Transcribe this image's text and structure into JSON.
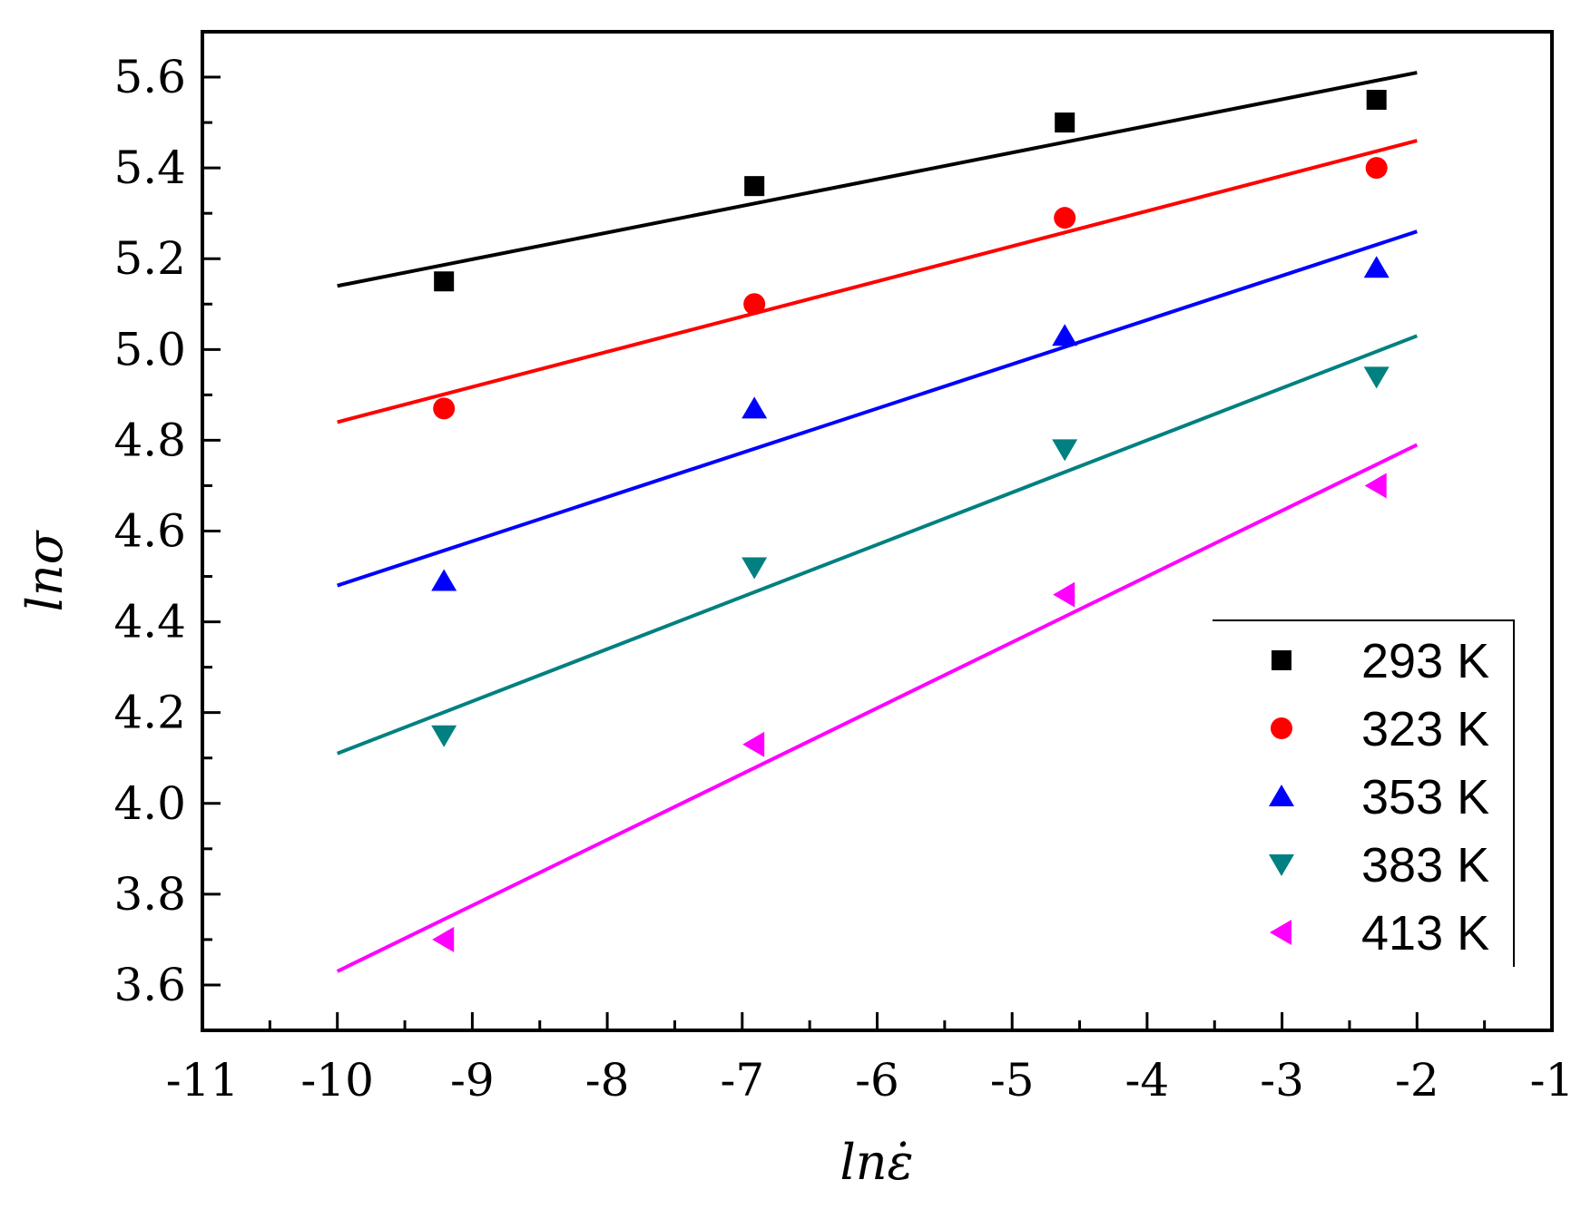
{
  "chart_data": {
    "type": "scatter",
    "title": "",
    "xlabel": "lnε̇",
    "ylabel": "lnσ",
    "xlim": [
      -11,
      -1
    ],
    "ylim": [
      3.5,
      5.7
    ],
    "x_ticks": [
      -11,
      -10,
      -9,
      -8,
      -7,
      -6,
      -5,
      -4,
      -3,
      -2,
      -1
    ],
    "x_tick_labels": [
      "-11",
      "-10",
      "-9",
      "-8",
      "-7",
      "-6",
      "-5",
      "-4",
      "-3",
      "-2",
      "-1"
    ],
    "y_ticks": [
      3.6,
      3.8,
      4.0,
      4.2,
      4.4,
      4.6,
      4.8,
      5.0,
      5.2,
      5.4,
      5.6
    ],
    "y_tick_labels": [
      "3.6",
      "3.8",
      "4.0",
      "4.2",
      "4.4",
      "4.6",
      "4.8",
      "5.0",
      "5.2",
      "5.4",
      "5.6"
    ],
    "legend_position": "bottom-right",
    "series": [
      {
        "name": "293 K",
        "marker": "square",
        "color": "#000000",
        "x": [
          -9.21,
          -6.91,
          -4.61,
          -2.3
        ],
        "y": [
          5.15,
          5.36,
          5.5,
          5.55
        ],
        "fit": {
          "x": [
            -10,
            -2
          ],
          "y": [
            5.14,
            5.61
          ]
        }
      },
      {
        "name": "323 K",
        "marker": "circle",
        "color": "#ff0000",
        "x": [
          -9.21,
          -6.91,
          -4.61,
          -2.3
        ],
        "y": [
          4.87,
          5.1,
          5.29,
          5.4
        ],
        "fit": {
          "x": [
            -10,
            -2
          ],
          "y": [
            4.84,
            5.46
          ]
        }
      },
      {
        "name": "353 K",
        "marker": "triangle-up",
        "color": "#0000ff",
        "x": [
          -9.21,
          -6.91,
          -4.61,
          -2.3
        ],
        "y": [
          4.49,
          4.87,
          5.03,
          5.18
        ],
        "fit": {
          "x": [
            -10,
            -2
          ],
          "y": [
            4.48,
            5.26
          ]
        }
      },
      {
        "name": "383 K",
        "marker": "triangle-down",
        "color": "#008080",
        "x": [
          -9.21,
          -6.91,
          -4.61,
          -2.3
        ],
        "y": [
          4.15,
          4.52,
          4.78,
          4.94
        ],
        "fit": {
          "x": [
            -10,
            -2
          ],
          "y": [
            4.11,
            5.03
          ]
        }
      },
      {
        "name": "413 K",
        "marker": "triangle-left",
        "color": "#ff00ff",
        "x": [
          -9.21,
          -6.91,
          -4.61,
          -2.3
        ],
        "y": [
          3.7,
          4.13,
          4.46,
          4.7
        ],
        "fit": {
          "x": [
            -10,
            -2
          ],
          "y": [
            3.63,
            4.79
          ]
        }
      }
    ]
  }
}
